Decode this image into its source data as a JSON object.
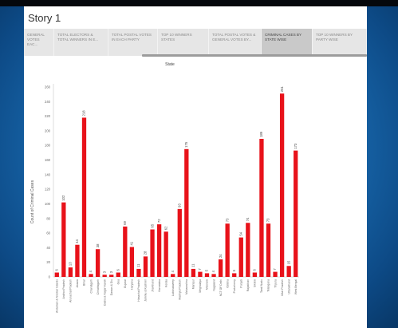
{
  "story": {
    "title": "Story 1"
  },
  "tabs": [
    {
      "label": "GENERAL VOTES EAC...",
      "active": false
    },
    {
      "label": "TOTAL ELECTORS & TOTAL WINNERS IN E...",
      "active": false
    },
    {
      "label": "TOTAL POSTAL VOTES IN EACH PARTY",
      "active": false
    },
    {
      "label": "TOP 10 WINNERS STATES",
      "active": false
    },
    {
      "label": "TOTAL POSTAL VOTES & GENERAL VOTES BY...",
      "active": false
    },
    {
      "label": "CRIMINAL CASES BY STATE WISE",
      "active": true
    },
    {
      "label": "TOP 10 WINNERS BY PARTY WISE",
      "active": false
    }
  ],
  "colors": {
    "bar": "#e8121a",
    "accent_bg": "#1a6db3"
  },
  "chart_data": {
    "type": "bar",
    "title": "State",
    "ylabel": "Count of Criminal Cases",
    "xlabel": "",
    "ylim": [
      0,
      260
    ],
    "yticks": [
      0,
      20,
      40,
      60,
      80,
      100,
      120,
      140,
      160,
      180,
      200,
      220,
      240,
      260
    ],
    "grid": false,
    "categories": [
      "Andaman & Nicobar Islands",
      "Andhra Pradesh",
      "Arunachal Pradesh",
      "Assam",
      "Bihar",
      "Chandigarh",
      "Chhattisgarh",
      "Dadra & Nagar Haveli",
      "Daman & Diu",
      "Goa",
      "Gujarat",
      "Haryana",
      "Himachal Pradesh",
      "Jammu & Kashmir",
      "Jharkhand",
      "Karnataka",
      "Kerala",
      "Lakshadweep",
      "Madhya Pradesh",
      "Maharashtra",
      "Manipur",
      "Meghalaya",
      "Mizoram",
      "Nagaland",
      "NCT OF Delhi",
      "Odisha",
      "Puducherry",
      "Punjab",
      "Rajasthan",
      "Sikkim",
      "Tamil Nadu",
      "Telangana",
      "Tripura",
      "Uttar Pradesh",
      "Uttarakhand",
      "West Bengal"
    ],
    "values": [
      6,
      102,
      13,
      44,
      218,
      4,
      38,
      3,
      3,
      6,
      69,
      41,
      11,
      28,
      65,
      72,
      62,
      4,
      93,
      175,
      11,
      7,
      5,
      4,
      24,
      73,
      5,
      54,
      74,
      6,
      189,
      73,
      7,
      251,
      15,
      173
    ]
  }
}
